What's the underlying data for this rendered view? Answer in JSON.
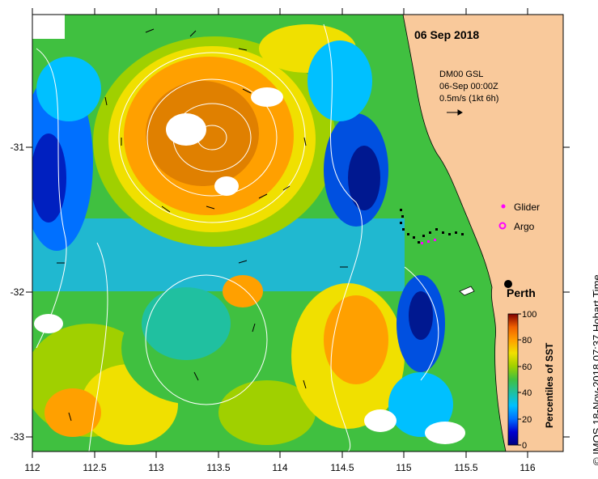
{
  "title": {
    "date": "06 Sep 2018"
  },
  "current_info": {
    "line1": "DM00 GSL",
    "line2": "06-Sep 00:00Z",
    "line3": "0.5m/s (1kt 6h)"
  },
  "legend": {
    "glider": "Glider",
    "argo": "Argo"
  },
  "city": {
    "name": "Perth",
    "lon": 115.86,
    "lat": -31.95
  },
  "colorbar": {
    "title": "Percentiles of SST",
    "ticks": [
      "0",
      "20",
      "40",
      "60",
      "80",
      "100"
    ],
    "colors": [
      "#000080",
      "#0000d0",
      "#0070ff",
      "#00c0ff",
      "#20c0a0",
      "#40c040",
      "#a0d000",
      "#f0e000",
      "#ffa000",
      "#f06000",
      "#c02000",
      "#800000"
    ]
  },
  "x_axis": {
    "ticks": [
      "112",
      "112.5",
      "113",
      "113.5",
      "114",
      "114.5",
      "115",
      "115.5",
      "116"
    ]
  },
  "y_axis": {
    "ticks": [
      "-31",
      "-32",
      "-33"
    ]
  },
  "credit": "© IMOS 18-Nov-2018 07:37 Hobart Time",
  "colors": {
    "land": "#f9c99b",
    "contour": "#ffffff",
    "glider": "#ff00ff",
    "argo": "#ff00ff"
  }
}
